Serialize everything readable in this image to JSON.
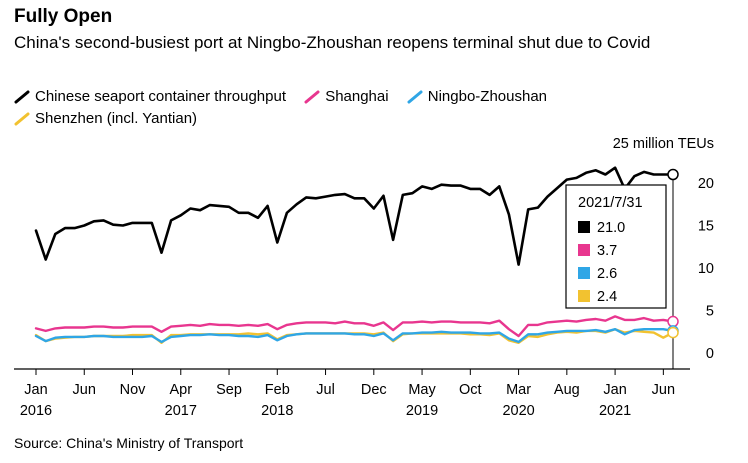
{
  "title": "Fully Open",
  "subtitle": "China's second-busiest port at Ningbo-Zhoushan reopens terminal shut due to Covid",
  "source": "Source: China's Ministry of Transport",
  "chart_data": {
    "type": "line",
    "unit_label": "25 million TEUs",
    "ylim": [
      0,
      25
    ],
    "y_ticks": [
      0,
      5,
      10,
      15,
      20
    ],
    "x_start": "2016-01",
    "x_end": "2021-07",
    "x_ticks": [
      {
        "month": "2016-01",
        "label": "Jan",
        "year": "2016"
      },
      {
        "month": "2016-06",
        "label": "Jun",
        "year": ""
      },
      {
        "month": "2016-11",
        "label": "Nov",
        "year": ""
      },
      {
        "month": "2017-04",
        "label": "Apr",
        "year": "2017"
      },
      {
        "month": "2017-09",
        "label": "Sep",
        "year": ""
      },
      {
        "month": "2018-02",
        "label": "Feb",
        "year": "2018"
      },
      {
        "month": "2018-07",
        "label": "Jul",
        "year": ""
      },
      {
        "month": "2018-12",
        "label": "Dec",
        "year": ""
      },
      {
        "month": "2019-05",
        "label": "May",
        "year": "2019"
      },
      {
        "month": "2019-10",
        "label": "Oct",
        "year": ""
      },
      {
        "month": "2020-03",
        "label": "Mar",
        "year": "2020"
      },
      {
        "month": "2020-08",
        "label": "Aug",
        "year": ""
      },
      {
        "month": "2021-01",
        "label": "Jan",
        "year": "2021"
      },
      {
        "month": "2021-06",
        "label": "Jun",
        "year": ""
      }
    ],
    "series": [
      {
        "name": "Chinese seaport container throughput",
        "color": "#000000",
        "values": [
          14.4,
          11.0,
          14.0,
          14.7,
          14.7,
          15.0,
          15.5,
          15.6,
          15.1,
          15.0,
          15.3,
          15.3,
          15.3,
          11.8,
          15.6,
          16.2,
          17.0,
          16.8,
          17.4,
          17.3,
          17.2,
          16.5,
          16.5,
          15.9,
          17.3,
          13.0,
          16.5,
          17.5,
          18.3,
          18.2,
          18.4,
          18.6,
          18.7,
          18.2,
          18.2,
          17.0,
          18.5,
          13.3,
          18.6,
          18.8,
          19.6,
          19.3,
          19.8,
          19.7,
          19.7,
          19.3,
          19.3,
          18.6,
          19.6,
          16.3,
          10.4,
          16.9,
          17.1,
          18.4,
          19.4,
          20.4,
          20.6,
          21.2,
          21.5,
          21.0,
          21.8,
          19.3,
          20.8,
          21.3,
          21.0,
          21.0,
          21.0
        ]
      },
      {
        "name": "Shanghai",
        "color": "#e8368f",
        "values": [
          2.9,
          2.6,
          2.9,
          3.0,
          3.0,
          3.0,
          3.1,
          3.1,
          3.0,
          3.0,
          3.1,
          3.1,
          3.1,
          2.5,
          3.1,
          3.2,
          3.3,
          3.2,
          3.4,
          3.3,
          3.3,
          3.2,
          3.3,
          3.2,
          3.4,
          2.8,
          3.3,
          3.5,
          3.6,
          3.6,
          3.6,
          3.5,
          3.7,
          3.5,
          3.5,
          3.2,
          3.6,
          2.7,
          3.6,
          3.6,
          3.7,
          3.6,
          3.7,
          3.7,
          3.6,
          3.6,
          3.6,
          3.5,
          3.8,
          2.8,
          2.0,
          3.3,
          3.3,
          3.6,
          3.7,
          3.8,
          3.7,
          3.9,
          4.0,
          3.8,
          4.3,
          3.9,
          3.9,
          4.1,
          3.8,
          3.9,
          3.7
        ]
      },
      {
        "name": "Ningbo-Zhoushan",
        "color": "#2fa6e6",
        "values": [
          2.0,
          1.4,
          1.8,
          1.9,
          1.9,
          1.9,
          2.0,
          2.0,
          1.9,
          1.9,
          1.9,
          1.9,
          2.0,
          1.3,
          1.9,
          2.0,
          2.1,
          2.1,
          2.2,
          2.1,
          2.1,
          2.0,
          2.0,
          1.9,
          2.1,
          1.5,
          2.0,
          2.2,
          2.3,
          2.3,
          2.3,
          2.3,
          2.3,
          2.2,
          2.2,
          2.0,
          2.3,
          1.5,
          2.3,
          2.3,
          2.4,
          2.4,
          2.5,
          2.4,
          2.4,
          2.4,
          2.3,
          2.3,
          2.4,
          1.7,
          1.3,
          2.2,
          2.2,
          2.4,
          2.5,
          2.6,
          2.6,
          2.6,
          2.7,
          2.5,
          2.8,
          2.2,
          2.7,
          2.8,
          2.8,
          2.8,
          2.6
        ]
      },
      {
        "name": "Shenzhen (incl. Yantian)",
        "color": "#f2c230",
        "values": [
          2.1,
          1.4,
          1.7,
          1.8,
          1.9,
          1.9,
          2.0,
          2.0,
          2.0,
          2.0,
          2.1,
          2.1,
          2.1,
          1.2,
          2.1,
          2.1,
          2.2,
          2.2,
          2.2,
          2.2,
          2.2,
          2.2,
          2.3,
          2.2,
          2.3,
          1.6,
          2.1,
          2.2,
          2.3,
          2.3,
          2.3,
          2.3,
          2.3,
          2.3,
          2.3,
          2.2,
          2.4,
          1.4,
          2.2,
          2.3,
          2.3,
          2.3,
          2.3,
          2.3,
          2.3,
          2.2,
          2.2,
          2.1,
          2.3,
          1.5,
          1.2,
          2.0,
          1.9,
          2.2,
          2.4,
          2.5,
          2.4,
          2.6,
          2.6,
          2.4,
          2.8,
          2.4,
          2.6,
          2.5,
          2.4,
          1.8,
          2.4
        ]
      }
    ],
    "tooltip": {
      "date": "2021/7/31",
      "values": [
        "21.0",
        "3.7",
        "2.6",
        "2.4"
      ]
    }
  }
}
